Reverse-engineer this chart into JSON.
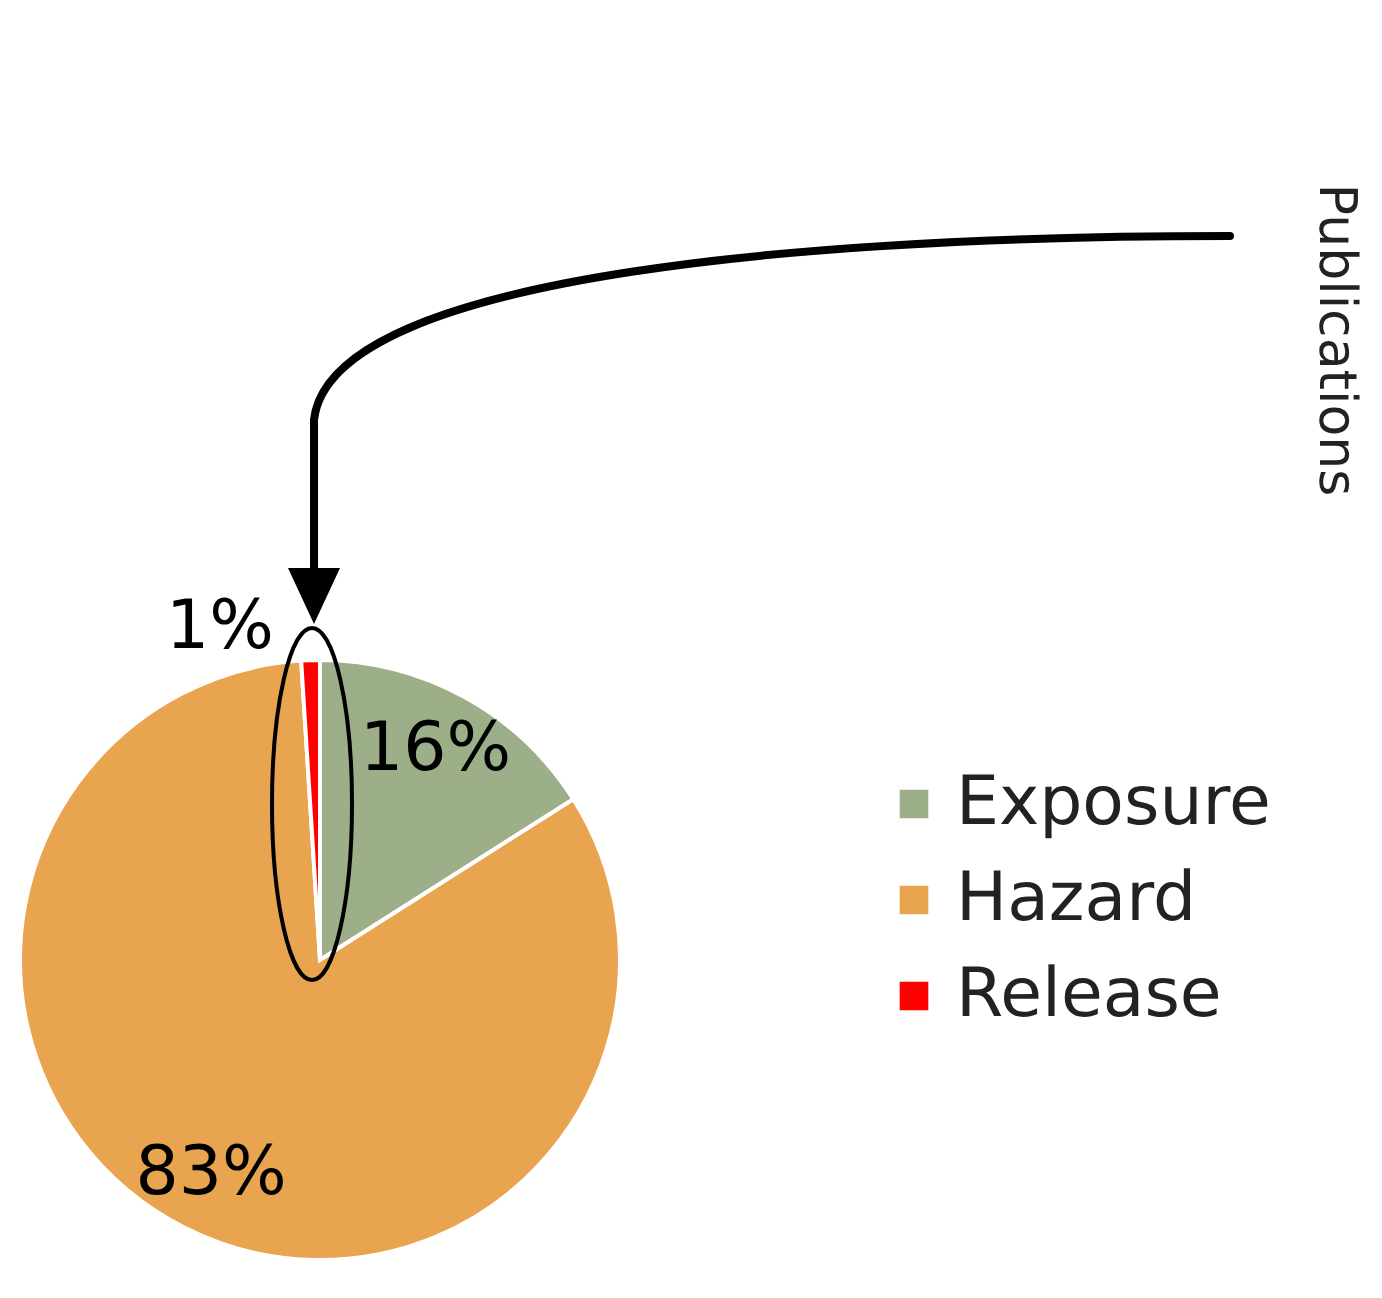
{
  "chart_data": {
    "type": "pie",
    "categories": [
      "Exposure",
      "Hazard",
      "Release"
    ],
    "values": [
      16,
      83,
      1
    ],
    "colors": [
      "#9caf88",
      "#e8a44e",
      "#ff0000"
    ],
    "value_labels": [
      "16%",
      "83%",
      "1%"
    ],
    "legend": "right",
    "annotations": [
      "Publications"
    ]
  }
}
